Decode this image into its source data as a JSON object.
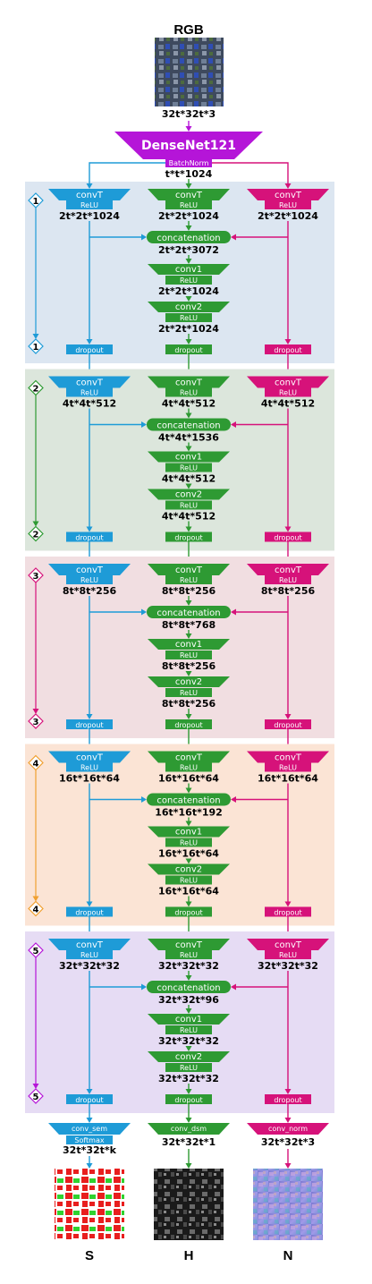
{
  "colors": {
    "blue": "#1E9BD7",
    "green": "#2E9A33",
    "magenta": "#D6127A",
    "purple": "#B515D8",
    "stage_fills": [
      "#DCE6F1",
      "#DCE6DC",
      "#F1DEE1",
      "#FBE4D5",
      "#E6DCF4"
    ],
    "stage_marker_colors": [
      "#1E9BD7",
      "#2E9A33",
      "#D6127A",
      "#F0A030",
      "#B515D8"
    ]
  },
  "input": {
    "title": "RGB",
    "image": "aerial-rgb-image",
    "size_label": "32t*32t*3"
  },
  "backbone": {
    "label": "DenseNet121",
    "sublabel": "BatchNorm",
    "output_size": "t*t*1024"
  },
  "stages": [
    {
      "number": "1",
      "convt": "convT",
      "relu": "ReLU",
      "branch_size": "2t*2t*1024",
      "concat": "concatenation",
      "concat_size": "2t*2t*3072",
      "conv1": "conv1",
      "conv1_size": "2t*2t*1024",
      "conv2": "conv2",
      "conv2_size": "2t*2t*1024",
      "dropout": "dropout"
    },
    {
      "number": "2",
      "convt": "convT",
      "relu": "ReLU",
      "branch_size": "4t*4t*512",
      "concat": "concatenation",
      "concat_size": "4t*4t*1536",
      "conv1": "conv1",
      "conv1_size": "4t*4t*512",
      "conv2": "conv2",
      "conv2_size": "4t*4t*512",
      "dropout": "dropout"
    },
    {
      "number": "3",
      "convt": "convT",
      "relu": "ReLU",
      "branch_size": "8t*8t*256",
      "concat": "concatenation",
      "concat_size": "8t*8t*768",
      "conv1": "conv1",
      "conv1_size": "8t*8t*256",
      "conv2": "conv2",
      "conv2_size": "8t*8t*256",
      "dropout": "dropout"
    },
    {
      "number": "4",
      "convt": "convT",
      "relu": "ReLU",
      "branch_size": "16t*16t*64",
      "concat": "concatenation",
      "concat_size": "16t*16t*192",
      "conv1": "conv1",
      "conv1_size": "16t*16t*64",
      "conv2": "conv2",
      "conv2_size": "16t*16t*64",
      "dropout": "dropout"
    },
    {
      "number": "5",
      "convt": "convT",
      "relu": "ReLU",
      "branch_size": "32t*32t*32",
      "concat": "concatenation",
      "concat_size": "32t*32t*96",
      "conv1": "conv1",
      "conv1_size": "32t*32t*32",
      "conv2": "conv2",
      "conv2_size": "32t*32t*32",
      "dropout": "dropout"
    }
  ],
  "heads": {
    "sem": {
      "label": "conv_sem",
      "sublabel": "Softmax",
      "size": "32t*32t*k",
      "output": "S",
      "image": "semantic-map-image"
    },
    "dsm": {
      "label": "conv_dsm",
      "size": "32t*32t*1",
      "output": "H",
      "image": "height-map-image"
    },
    "norm": {
      "label": "conv_norm",
      "size": "32t*32t*3",
      "output": "N",
      "image": "normal-map-image"
    }
  }
}
